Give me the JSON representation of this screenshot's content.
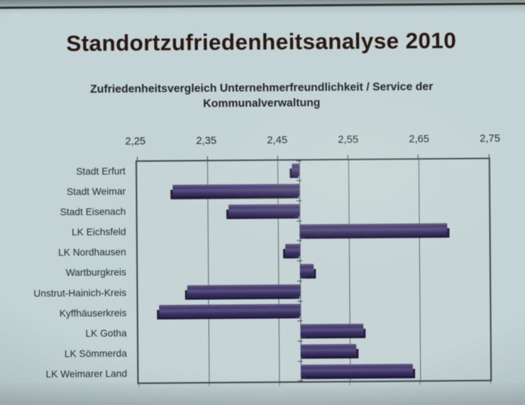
{
  "slide": {
    "title": "Standortzufriedenheitsanalyse 2010",
    "subtitle_line1": "Zufriedenheitsvergleich Unternehmerfreundlichkeit / Service der",
    "subtitle_line2": "Kommunalverwaltung"
  },
  "chart_data": {
    "type": "bar",
    "orientation": "horizontal",
    "title": "Zufriedenheitsvergleich Unternehmerfreundlichkeit / Service der Kommunalverwaltung",
    "categories": [
      "Stadt Erfurt",
      "Stadt Weimar",
      "Stadt Eisenach",
      "LK Eichsfeld",
      "LK Nordhausen",
      "Wartburgkreis",
      "Unstrut-Hainich-Kreis",
      "Kyffhäuserkreis",
      "LK Gotha",
      "LK Sömmerda",
      "LK Weimarer Land"
    ],
    "values": [
      2.47,
      2.3,
      2.38,
      2.69,
      2.46,
      2.5,
      2.32,
      2.28,
      2.57,
      2.56,
      2.64
    ],
    "baseline": 2.48,
    "xlim": [
      2.25,
      2.75
    ],
    "xtick_labels": [
      "2,25",
      "2,35",
      "2,45",
      "2,55",
      "2,65",
      "2,75"
    ],
    "xtick_values": [
      2.25,
      2.35,
      2.45,
      2.55,
      2.65,
      2.75
    ],
    "xlabel": "",
    "ylabel": "",
    "grid": true,
    "legend": false,
    "bar_color": "#463d6d",
    "bar_shadow_color": "#1f1a38"
  },
  "colors": {
    "background": "#c4d3d5",
    "title_text": "#2a1712",
    "subtitle_text": "#22232c",
    "axis_line": "#39464b",
    "grid_line": "#53636a",
    "label_text": "#272e31"
  }
}
